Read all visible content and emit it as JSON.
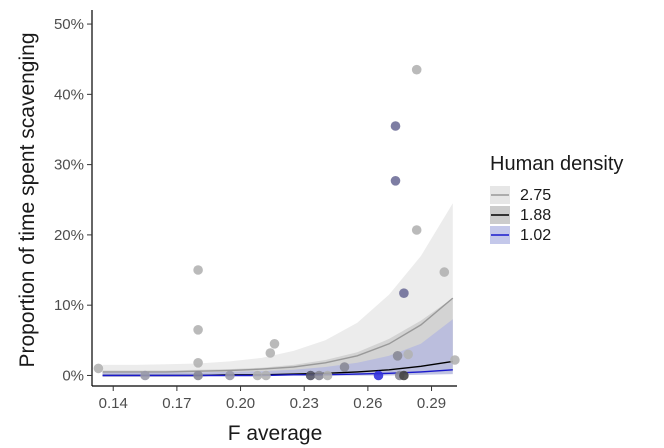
{
  "chart_data": {
    "type": "scatter",
    "xlabel": "F average",
    "ylabel": "Proportion of time spent scavenging",
    "xlim": [
      0.13,
      0.302
    ],
    "ylim": [
      -0.015,
      0.52
    ],
    "x_ticks": [
      0.14,
      0.17,
      0.2,
      0.23,
      0.26,
      0.29
    ],
    "x_tick_labels": [
      "0.14",
      "0.17",
      "0.20",
      "0.23",
      "0.26",
      "0.29"
    ],
    "y_ticks": [
      0,
      0.1,
      0.2,
      0.3,
      0.4,
      0.5
    ],
    "y_tick_labels": [
      "0%",
      "10%",
      "20%",
      "30%",
      "40%",
      "50%"
    ],
    "grid": false,
    "legend": {
      "title": "Human density",
      "position": "right",
      "entries": [
        {
          "label": "2.75",
          "line_color": "#999999",
          "fill_color": "#e6e6e6"
        },
        {
          "label": "1.88",
          "line_color": "#000000",
          "fill_color": "#cccccc"
        },
        {
          "label": "1.02",
          "line_color": "#1a1acc",
          "fill_color": "#c4c8ea"
        }
      ]
    },
    "points": [
      {
        "x": 0.133,
        "y": 0.01,
        "color": "#b3b3b3"
      },
      {
        "x": 0.155,
        "y": 0.0,
        "color": "#9a9aa8"
      },
      {
        "x": 0.18,
        "y": 0.15,
        "color": "#b3b3b3"
      },
      {
        "x": 0.18,
        "y": 0.065,
        "color": "#b3b3b3"
      },
      {
        "x": 0.18,
        "y": 0.018,
        "color": "#b3b3b3"
      },
      {
        "x": 0.18,
        "y": 0.0,
        "color": "#8a8a96"
      },
      {
        "x": 0.195,
        "y": 0.0,
        "color": "#9a9aa8"
      },
      {
        "x": 0.208,
        "y": 0.0,
        "color": "#b3b3b3"
      },
      {
        "x": 0.212,
        "y": 0.0,
        "color": "#b3b3b3"
      },
      {
        "x": 0.214,
        "y": 0.032,
        "color": "#b3b3b3"
      },
      {
        "x": 0.216,
        "y": 0.045,
        "color": "#b3b3b3"
      },
      {
        "x": 0.233,
        "y": 0.0,
        "color": "#555566"
      },
      {
        "x": 0.237,
        "y": 0.0,
        "color": "#8a8a96"
      },
      {
        "x": 0.241,
        "y": 0.0,
        "color": "#b3b3b3"
      },
      {
        "x": 0.249,
        "y": 0.012,
        "color": "#8a8a96"
      },
      {
        "x": 0.265,
        "y": 0.0,
        "color": "#3333dd"
      },
      {
        "x": 0.273,
        "y": 0.355,
        "color": "#6f6f99"
      },
      {
        "x": 0.273,
        "y": 0.277,
        "color": "#6f6f99"
      },
      {
        "x": 0.274,
        "y": 0.028,
        "color": "#8a8a96"
      },
      {
        "x": 0.275,
        "y": 0.0,
        "color": "#8a8a96"
      },
      {
        "x": 0.277,
        "y": 0.117,
        "color": "#6f6f99"
      },
      {
        "x": 0.277,
        "y": 0.0,
        "color": "#444444"
      },
      {
        "x": 0.279,
        "y": 0.03,
        "color": "#b3b3b3"
      },
      {
        "x": 0.283,
        "y": 0.435,
        "color": "#b3b3b3"
      },
      {
        "x": 0.283,
        "y": 0.207,
        "color": "#b3b3b3"
      },
      {
        "x": 0.296,
        "y": 0.147,
        "color": "#b3b3b3"
      },
      {
        "x": 0.301,
        "y": 0.022,
        "color": "#b3b3b3"
      }
    ],
    "series": [
      {
        "name": "2.75",
        "line_color": "#999999",
        "band_color": "#ececec",
        "x": [
          0.135,
          0.15,
          0.165,
          0.18,
          0.195,
          0.21,
          0.225,
          0.24,
          0.255,
          0.27,
          0.285,
          0.3
        ],
        "y": [
          0.005,
          0.005,
          0.005,
          0.006,
          0.007,
          0.009,
          0.012,
          0.018,
          0.028,
          0.045,
          0.072,
          0.11
        ],
        "lower": [
          0.0,
          0.0,
          0.0,
          0.0,
          0.0,
          0.0,
          0.0,
          0.002,
          0.006,
          0.012,
          0.022,
          0.035
        ],
        "upper": [
          0.015,
          0.015,
          0.016,
          0.017,
          0.02,
          0.025,
          0.035,
          0.05,
          0.075,
          0.115,
          0.17,
          0.245
        ]
      },
      {
        "name": "1.88",
        "line_color": "#000000",
        "band_color": "#cfcfcf",
        "x": [
          0.135,
          0.15,
          0.165,
          0.18,
          0.195,
          0.21,
          0.225,
          0.24,
          0.255,
          0.27,
          0.285,
          0.3
        ],
        "y": [
          0.0,
          0.0,
          0.0,
          0.0,
          0.001,
          0.001,
          0.002,
          0.003,
          0.005,
          0.008,
          0.013,
          0.02
        ],
        "lower": [
          0.0,
          0.0,
          0.0,
          0.0,
          0.0,
          0.0,
          0.0,
          0.0,
          0.0,
          0.001,
          0.003,
          0.006
        ],
        "upper": [
          0.007,
          0.007,
          0.007,
          0.008,
          0.009,
          0.011,
          0.015,
          0.022,
          0.033,
          0.052,
          0.078,
          0.11
        ]
      },
      {
        "name": "1.02",
        "line_color": "#1a1acc",
        "band_color": "#b6bade",
        "x": [
          0.135,
          0.15,
          0.165,
          0.18,
          0.195,
          0.21,
          0.225,
          0.24,
          0.255,
          0.27,
          0.285,
          0.3
        ],
        "y": [
          0.0,
          0.0,
          0.0,
          0.0,
          0.0,
          0.0,
          0.001,
          0.001,
          0.002,
          0.003,
          0.005,
          0.008
        ],
        "lower": [
          0.0,
          0.0,
          0.0,
          0.0,
          0.0,
          0.0,
          0.0,
          0.0,
          0.0,
          0.0,
          0.001,
          0.002
        ],
        "upper": [
          0.004,
          0.004,
          0.004,
          0.004,
          0.005,
          0.006,
          0.008,
          0.012,
          0.018,
          0.028,
          0.045,
          0.08
        ]
      }
    ]
  }
}
